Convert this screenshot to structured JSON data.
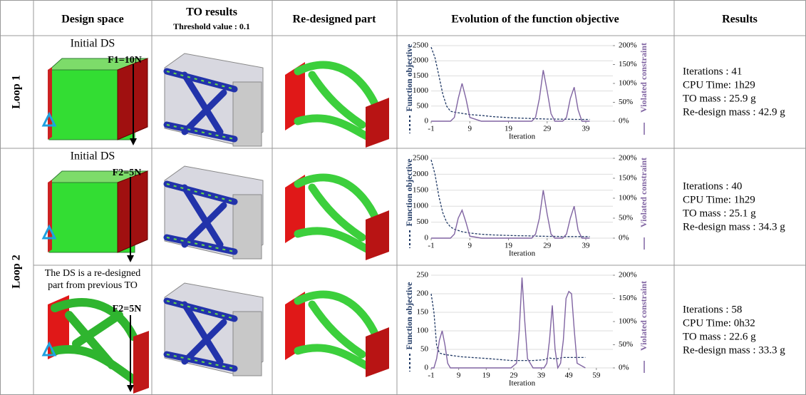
{
  "table": {
    "headers": {
      "design_space": "Design space",
      "to_results": "TO results",
      "threshold": "Threshold value : 0.1",
      "redesigned": "Re-designed part",
      "evolution": "Evolution of the function objective",
      "results": "Results"
    },
    "loops": [
      "Loop 1",
      "Loop 2"
    ],
    "rows": [
      {
        "design_label": [
          "Initial DS"
        ],
        "force": "F1=10N",
        "results": [
          "Iterations : 41",
          "CPU Time: 1h29",
          "TO mass : 25.9 g",
          "Re-design mass : 42.9 g"
        ],
        "chart": {
          "type": "line",
          "x_label": "Iteration",
          "y_label": "Function objective",
          "y2_label": "Violated constraint",
          "xlim": [
            -1,
            46
          ],
          "xticks": [
            -1,
            9,
            19,
            29,
            39
          ],
          "ylim": [
            0,
            2500
          ],
          "yticks": [
            0,
            500,
            1000,
            1500,
            2000,
            2500
          ],
          "y2lim": [
            0,
            200
          ],
          "y2ticks": [
            {
              "value": 0,
              "label": "0%"
            },
            {
              "value": 50,
              "label": "50%"
            },
            {
              "value": 100,
              "label": "100%"
            },
            {
              "value": 150,
              "label": "150%"
            },
            {
              "value": 200,
              "label": "200%"
            }
          ],
          "x": [
            -1,
            0,
            1,
            2,
            3,
            4,
            5,
            6,
            7,
            8,
            9,
            12,
            15,
            20,
            25,
            26,
            27,
            28,
            29,
            30,
            31,
            33,
            34,
            35,
            36,
            37,
            38,
            40
          ],
          "series": [
            {
              "color": "#1f3864",
              "values": [
                2450,
                2100,
                1500,
                900,
                500,
                330,
                300,
                280,
                260,
                240,
                220,
                190,
                150,
                110,
                90,
                80,
                80,
                75,
                70,
                70,
                70,
                65,
                65,
                65,
                60,
                60,
                60,
                60
              ]
            },
            {
              "color": "#8064a2",
              "axis": "y2",
              "values": [
                0,
                0,
                0,
                0,
                0,
                0,
                10,
                60,
                100,
                60,
                10,
                0,
                0,
                0,
                0,
                10,
                60,
                135,
                80,
                20,
                0,
                0,
                10,
                60,
                90,
                30,
                0,
                0
              ]
            }
          ]
        }
      },
      {
        "design_label": [
          "Initial DS"
        ],
        "force": "F2=5N",
        "results": [
          "Iterations : 40",
          "CPU Time: 1h29",
          "TO mass : 25.1 g",
          "Re-design mass : 34.3 g"
        ],
        "chart": {
          "type": "line",
          "x_label": "Iteration",
          "y_label": "Function objective",
          "y2_label": "Violated constraint",
          "xlim": [
            -1,
            46
          ],
          "xticks": [
            -1,
            9,
            19,
            29,
            39
          ],
          "ylim": [
            0,
            2500
          ],
          "yticks": [
            0,
            500,
            1000,
            1500,
            2000,
            2500
          ],
          "y2lim": [
            0,
            200
          ],
          "y2ticks": [
            {
              "value": 0,
              "label": "0%"
            },
            {
              "value": 50,
              "label": "50%"
            },
            {
              "value": 100,
              "label": "100%"
            },
            {
              "value": 150,
              "label": "150%"
            },
            {
              "value": 200,
              "label": "200%"
            }
          ],
          "x": [
            -1,
            0,
            1,
            2,
            3,
            4,
            5,
            6,
            7,
            8,
            9,
            12,
            15,
            20,
            25,
            26,
            27,
            28,
            29,
            30,
            31,
            33,
            34,
            35,
            36,
            37,
            38,
            40
          ],
          "series": [
            {
              "color": "#1f3864",
              "values": [
                2450,
                2000,
                1300,
                800,
                500,
                350,
                280,
                240,
                200,
                180,
                160,
                120,
                100,
                80,
                70,
                65,
                60,
                60,
                55,
                55,
                55,
                50,
                50,
                50,
                50,
                50,
                50,
                50
              ]
            },
            {
              "color": "#8064a2",
              "axis": "y2",
              "values": [
                0,
                0,
                0,
                0,
                0,
                0,
                10,
                50,
                70,
                40,
                5,
                0,
                0,
                0,
                0,
                10,
                50,
                120,
                60,
                10,
                0,
                0,
                10,
                50,
                80,
                20,
                0,
                0
              ]
            }
          ]
        }
      },
      {
        "design_label": [
          "The DS is a re-designed",
          "part from previous TO"
        ],
        "force": "F2=5N",
        "results": [
          "Iterations : 58",
          "CPU Time: 0h32",
          "TO mass : 22.6 g",
          "Re-design mass : 33.3 g"
        ],
        "chart": {
          "type": "line",
          "x_label": "Iteration",
          "y_label": "Function objective",
          "y2_label": "Violated constraint",
          "xlim": [
            -1,
            65
          ],
          "xticks": [
            -1,
            9,
            19,
            29,
            39,
            49,
            59
          ],
          "ylim": [
            0,
            250
          ],
          "yticks": [
            0,
            50,
            100,
            150,
            200,
            250
          ],
          "y2lim": [
            0,
            200
          ],
          "y2ticks": [
            {
              "value": 0,
              "label": "0%"
            },
            {
              "value": 50,
              "label": "50%"
            },
            {
              "value": 100,
              "label": "100%"
            },
            {
              "value": 150,
              "label": "150%"
            },
            {
              "value": 200,
              "label": "200%"
            }
          ],
          "x": [
            -1,
            0,
            1,
            2,
            3,
            4,
            5,
            6,
            10,
            20,
            28,
            30,
            31,
            32,
            33,
            34,
            36,
            40,
            41,
            42,
            43,
            44,
            45,
            46,
            47,
            48,
            49,
            50,
            51,
            52,
            55
          ],
          "series": [
            {
              "color": "#1f3864",
              "values": [
                200,
                150,
                60,
                40,
                38,
                36,
                35,
                34,
                30,
                25,
                20,
                20,
                20,
                20,
                20,
                20,
                20,
                22,
                25,
                27,
                25,
                25,
                25,
                27,
                28,
                28,
                28,
                28,
                28,
                28,
                28
              ]
            },
            {
              "color": "#8064a2",
              "axis": "y2",
              "values": [
                0,
                0,
                20,
                60,
                80,
                50,
                10,
                0,
                0,
                0,
                0,
                10,
                80,
                195,
                100,
                20,
                0,
                0,
                10,
                60,
                135,
                40,
                0,
                10,
                60,
                150,
                165,
                160,
                80,
                10,
                0
              ]
            }
          ]
        }
      }
    ]
  }
}
